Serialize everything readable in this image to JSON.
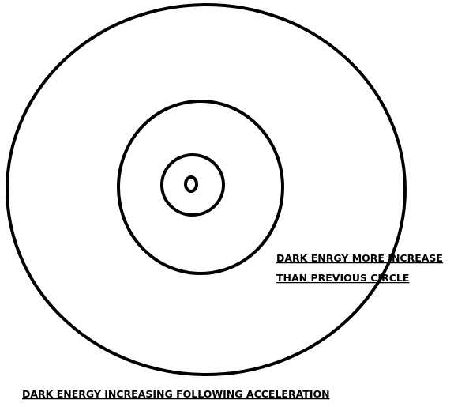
{
  "annotation": {
    "lines": [
      "DARK ENRGY MORE INCREASE",
      "THAN PREVIOUS CIRCLE"
    ]
  },
  "caption": "DARK ENERGY INCREASING FOLLOWING ACCELERATION"
}
